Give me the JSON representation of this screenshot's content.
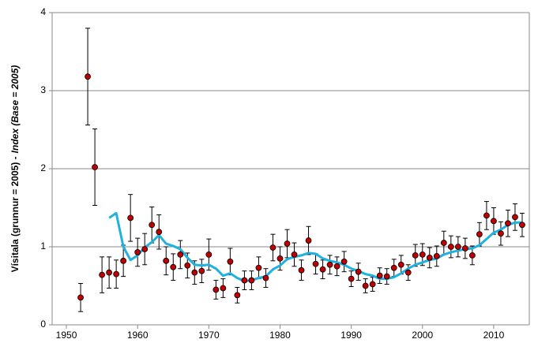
{
  "chart_data": {
    "type": "scatter-errorbar-line",
    "ylabel": [
      "Vísitala (grunnur = 2005) -",
      "Index (Base = 2005)"
    ],
    "x": [
      1952,
      1953,
      1954,
      1955,
      1956,
      1957,
      1958,
      1959,
      1960,
      1961,
      1962,
      1963,
      1964,
      1965,
      1966,
      1967,
      1968,
      1969,
      1970,
      1971,
      1972,
      1973,
      1974,
      1975,
      1976,
      1977,
      1978,
      1979,
      1980,
      1981,
      1982,
      1983,
      1984,
      1985,
      1986,
      1987,
      1988,
      1989,
      1990,
      1991,
      1992,
      1993,
      1994,
      1995,
      1996,
      1997,
      1998,
      1999,
      2000,
      2001,
      2002,
      2003,
      2004,
      2005,
      2006,
      2007,
      2008,
      2009,
      2010,
      2011,
      2012,
      2013,
      2014
    ],
    "series": [
      {
        "color": "#c00000",
        "values": [
          0.35,
          3.18,
          2.02,
          0.64,
          0.67,
          0.65,
          0.82,
          1.37,
          0.93,
          0.97,
          1.28,
          1.19,
          0.82,
          0.74,
          0.9,
          0.76,
          0.67,
          0.69,
          0.9,
          0.45,
          0.47,
          0.81,
          0.38,
          0.57,
          0.57,
          0.73,
          0.6,
          0.99,
          0.85,
          1.04,
          0.9,
          0.7,
          1.08,
          0.78,
          0.71,
          0.77,
          0.75,
          0.81,
          0.59,
          0.68,
          0.5,
          0.52,
          0.63,
          0.62,
          0.73,
          0.77,
          0.67,
          0.89,
          0.9,
          0.86,
          0.88,
          1.05,
          1.0,
          1.0,
          0.98,
          0.89,
          1.16,
          1.4,
          1.33,
          1.17,
          1.3,
          1.38,
          1.28
        ],
        "errors": [
          0.18,
          0.62,
          0.49,
          0.23,
          0.2,
          0.18,
          0.2,
          0.3,
          0.18,
          0.2,
          0.23,
          0.22,
          0.18,
          0.17,
          0.18,
          0.16,
          0.15,
          0.15,
          0.2,
          0.12,
          0.12,
          0.17,
          0.1,
          0.12,
          0.12,
          0.14,
          0.12,
          0.17,
          0.15,
          0.18,
          0.15,
          0.13,
          0.18,
          0.13,
          0.12,
          0.12,
          0.12,
          0.13,
          0.1,
          0.11,
          0.09,
          0.09,
          0.1,
          0.1,
          0.11,
          0.12,
          0.1,
          0.14,
          0.14,
          0.13,
          0.13,
          0.15,
          0.14,
          0.13,
          0.13,
          0.12,
          0.15,
          0.18,
          0.17,
          0.15,
          0.17,
          0.17,
          0.15
        ]
      },
      {
        "color": "#1fb1e0",
        "values": [
          null,
          null,
          null,
          null,
          1.37,
          1.43,
          1.0,
          0.83,
          0.89,
          0.99,
          1.06,
          1.15,
          1.04,
          1.01,
          0.97,
          0.86,
          0.77,
          0.76,
          0.77,
          0.72,
          0.63,
          0.66,
          0.6,
          0.56,
          0.57,
          0.6,
          0.62,
          0.71,
          0.76,
          0.84,
          0.87,
          0.89,
          0.92,
          0.91,
          0.85,
          0.82,
          0.8,
          0.77,
          0.72,
          0.69,
          0.65,
          0.63,
          0.59,
          0.59,
          0.61,
          0.66,
          0.72,
          0.77,
          0.8,
          0.83,
          0.85,
          0.9,
          0.93,
          0.95,
          0.97,
          0.98,
          1.02,
          1.1,
          1.18,
          1.22,
          1.28,
          1.31,
          1.31
        ]
      }
    ],
    "xlim": [
      1948,
      2015
    ],
    "xticks": [
      1950,
      1960,
      1970,
      1980,
      1990,
      2000,
      2010
    ],
    "ylim": [
      0,
      4
    ],
    "yticks": [
      0,
      1,
      2,
      3,
      4
    ],
    "grid": true
  }
}
